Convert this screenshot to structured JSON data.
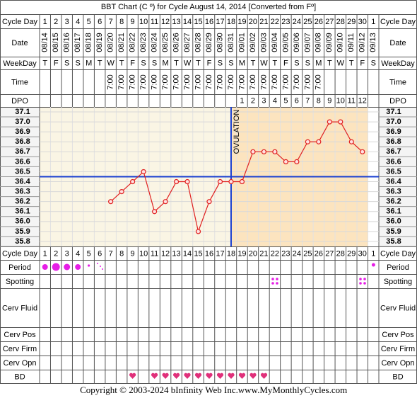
{
  "header": {
    "title": "BBT Chart (C º) for Cycle August 14, 2014  [Converted from Fº]"
  },
  "row_labels": {
    "cycle_day": "Cycle Day",
    "date": "Date",
    "weekday": "WeekDay",
    "time": "Time",
    "dpo": "DPO",
    "period": "Period",
    "spotting": "Spotting",
    "cerv_fluid": "Cerv Fluid",
    "cerv_pos": "Cerv Pos",
    "cerv_firm": "Cerv Firm",
    "cerv_opn": "Cerv Opn",
    "bd": "BD"
  },
  "chart_data": {
    "type": "line",
    "categories": [
      1,
      2,
      3,
      4,
      5,
      6,
      7,
      8,
      9,
      10,
      11,
      12,
      13,
      14,
      15,
      16,
      17,
      18,
      19,
      20,
      21,
      22,
      23,
      24,
      25,
      26,
      27,
      28,
      29,
      30,
      1
    ],
    "dates": [
      "08/14",
      "08/15",
      "08/16",
      "08/17",
      "08/18",
      "08/19",
      "08/20",
      "08/21",
      "08/22",
      "08/23",
      "08/24",
      "08/25",
      "08/26",
      "08/27",
      "08/28",
      "08/29",
      "08/30",
      "08/31",
      "09/01",
      "09/02",
      "09/03",
      "09/04",
      "09/05",
      "09/06",
      "09/07",
      "09/08",
      "09/09",
      "09/10",
      "09/11",
      "09/12",
      "09/13"
    ],
    "weekdays": [
      "T",
      "F",
      "S",
      "S",
      "M",
      "T",
      "W",
      "T",
      "F",
      "S",
      "S",
      "M",
      "T",
      "W",
      "T",
      "F",
      "S",
      "S",
      "M",
      "T",
      "W",
      "T",
      "F",
      "S",
      "S",
      "M",
      "T",
      "W",
      "T",
      "F",
      "S"
    ],
    "times": [
      null,
      null,
      null,
      null,
      null,
      null,
      "7:00",
      "7:00",
      "7:00",
      "7:00",
      "7:00",
      "7:00",
      "7:00",
      "7:00",
      "7:00",
      "7:00",
      "7:00",
      "7:00",
      "7:00",
      "7:00",
      "7:00",
      "7:00",
      "7:00",
      "7:00",
      "7:00",
      "7:00",
      null,
      null,
      null,
      null,
      null
    ],
    "dpo": [
      null,
      null,
      null,
      null,
      null,
      null,
      null,
      null,
      null,
      null,
      null,
      null,
      null,
      null,
      null,
      null,
      null,
      null,
      1,
      2,
      3,
      4,
      5,
      6,
      7,
      8,
      9,
      10,
      11,
      12,
      null
    ],
    "values": [
      null,
      null,
      null,
      null,
      null,
      null,
      36.2,
      36.3,
      36.4,
      36.5,
      36.1,
      36.2,
      36.4,
      36.4,
      35.9,
      36.2,
      36.4,
      36.4,
      36.4,
      36.7,
      36.7,
      36.7,
      36.6,
      36.6,
      36.8,
      36.8,
      37.0,
      37.0,
      36.8,
      36.7,
      null
    ],
    "color": "#e02020",
    "ylim": [
      35.75,
      37.15
    ],
    "yticks": [
      37.1,
      {
        "value": 37.0,
        "label": "37.0"
      },
      36.9,
      36.8,
      36.7,
      36.6,
      36.5,
      36.4,
      36.3,
      36.2,
      36.1,
      {
        "value": 36.0,
        "label": "36.0"
      },
      35.9,
      35.8
    ],
    "grid": true,
    "coverline": 36.45,
    "coverline_color": "#1a3fd0",
    "ovulation_day": 18,
    "ovulation_label": "OVULATION"
  },
  "footer": {
    "copyright": "Copyright © 2003-2024 bInfinity Web Inc.",
    "site": "www.MyMonthlyCycles.com"
  }
}
